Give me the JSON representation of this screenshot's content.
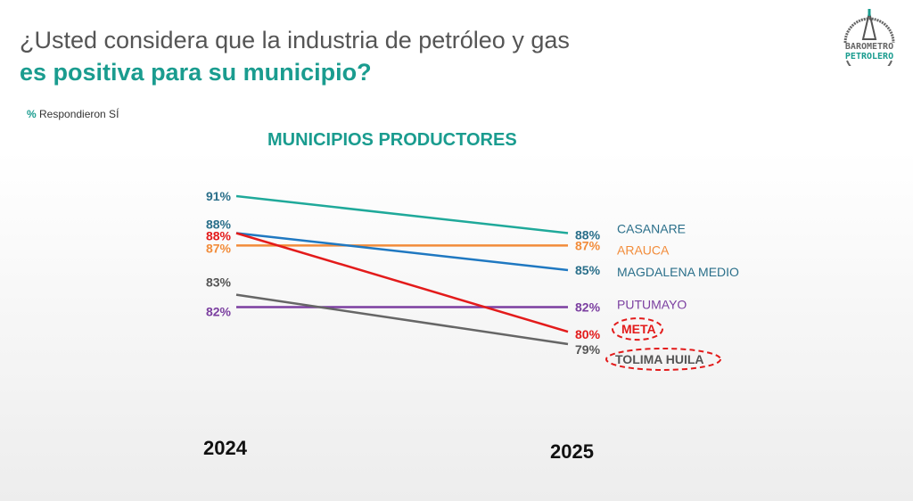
{
  "title_line1": "¿Usted considera que la industria de petróleo y gas",
  "title_line2": "es positiva para su municipio?",
  "note_symbol": "%",
  "note_text": " Respondieron SÍ",
  "logo": {
    "line1": "BAROMETRO",
    "line2": "PETROLERO"
  },
  "chart_data": {
    "type": "line",
    "title": "MUNICIPIOS PRODUCTORES",
    "categories": [
      "2024",
      "2025"
    ],
    "unit": "%",
    "highlighted": [
      "META",
      "TOLIMA HUILA"
    ],
    "series": [
      {
        "name": "CASANARE",
        "values": [
          91,
          88
        ],
        "color": "#1fa99a",
        "label_color": "#2a6f8a"
      },
      {
        "name": "ARAUCA",
        "values": [
          87,
          87
        ],
        "color": "#f28c3a",
        "label_color": "#f28c3a"
      },
      {
        "name": "MAGDALENA MEDIO",
        "values": [
          88,
          85
        ],
        "color": "#1f78c1",
        "label_color": "#2a6f8a"
      },
      {
        "name": "PUTUMAYO",
        "values": [
          82,
          82
        ],
        "color": "#7b3fa0",
        "label_color": "#7b3fa0"
      },
      {
        "name": "META",
        "values": [
          88,
          80
        ],
        "color": "#e31b1b",
        "label_color": "#e31b1b"
      },
      {
        "name": "TOLIMA HUILA",
        "values": [
          83,
          79
        ],
        "color": "#666666",
        "label_color": "#555555"
      }
    ]
  }
}
